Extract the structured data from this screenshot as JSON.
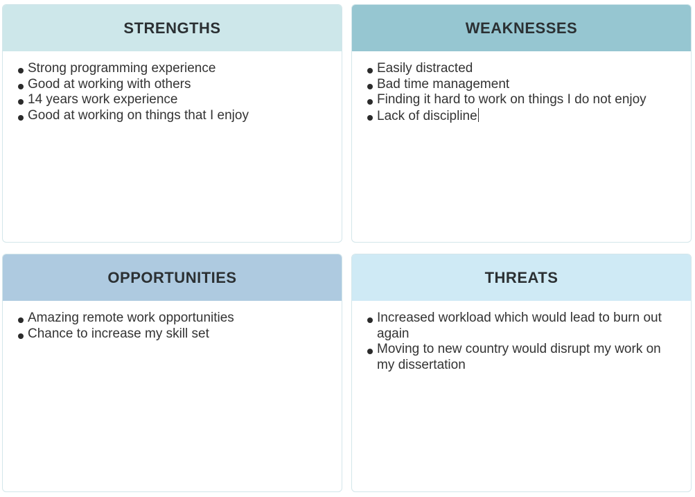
{
  "colors": {
    "strengths_header": "#cde7ea",
    "weaknesses_header": "#96c6d1",
    "opportunities_header": "#aecae0",
    "threats_header": "#cfeaf5",
    "border": "#d3e6ea",
    "text": "#333333"
  },
  "quadrants": {
    "strengths": {
      "title": "STRENGTHS",
      "items": [
        "Strong programming experience",
        "Good at working with others",
        "14 years work experience",
        "Good at working on things that I enjoy"
      ]
    },
    "weaknesses": {
      "title": "WEAKNESSES",
      "items": [
        "Easily distracted",
        "Bad time management",
        "Finding it hard to work on things I do not enjoy",
        "Lack of discipline"
      ]
    },
    "opportunities": {
      "title": "OPPORTUNITIES",
      "items": [
        "Amazing remote work opportunities",
        "Chance to increase my skill set"
      ]
    },
    "threats": {
      "title": "THREATS",
      "items": [
        "Increased workload which would lead to burn out again",
        "Moving to new country would disrupt my work on my dissertation"
      ]
    }
  }
}
